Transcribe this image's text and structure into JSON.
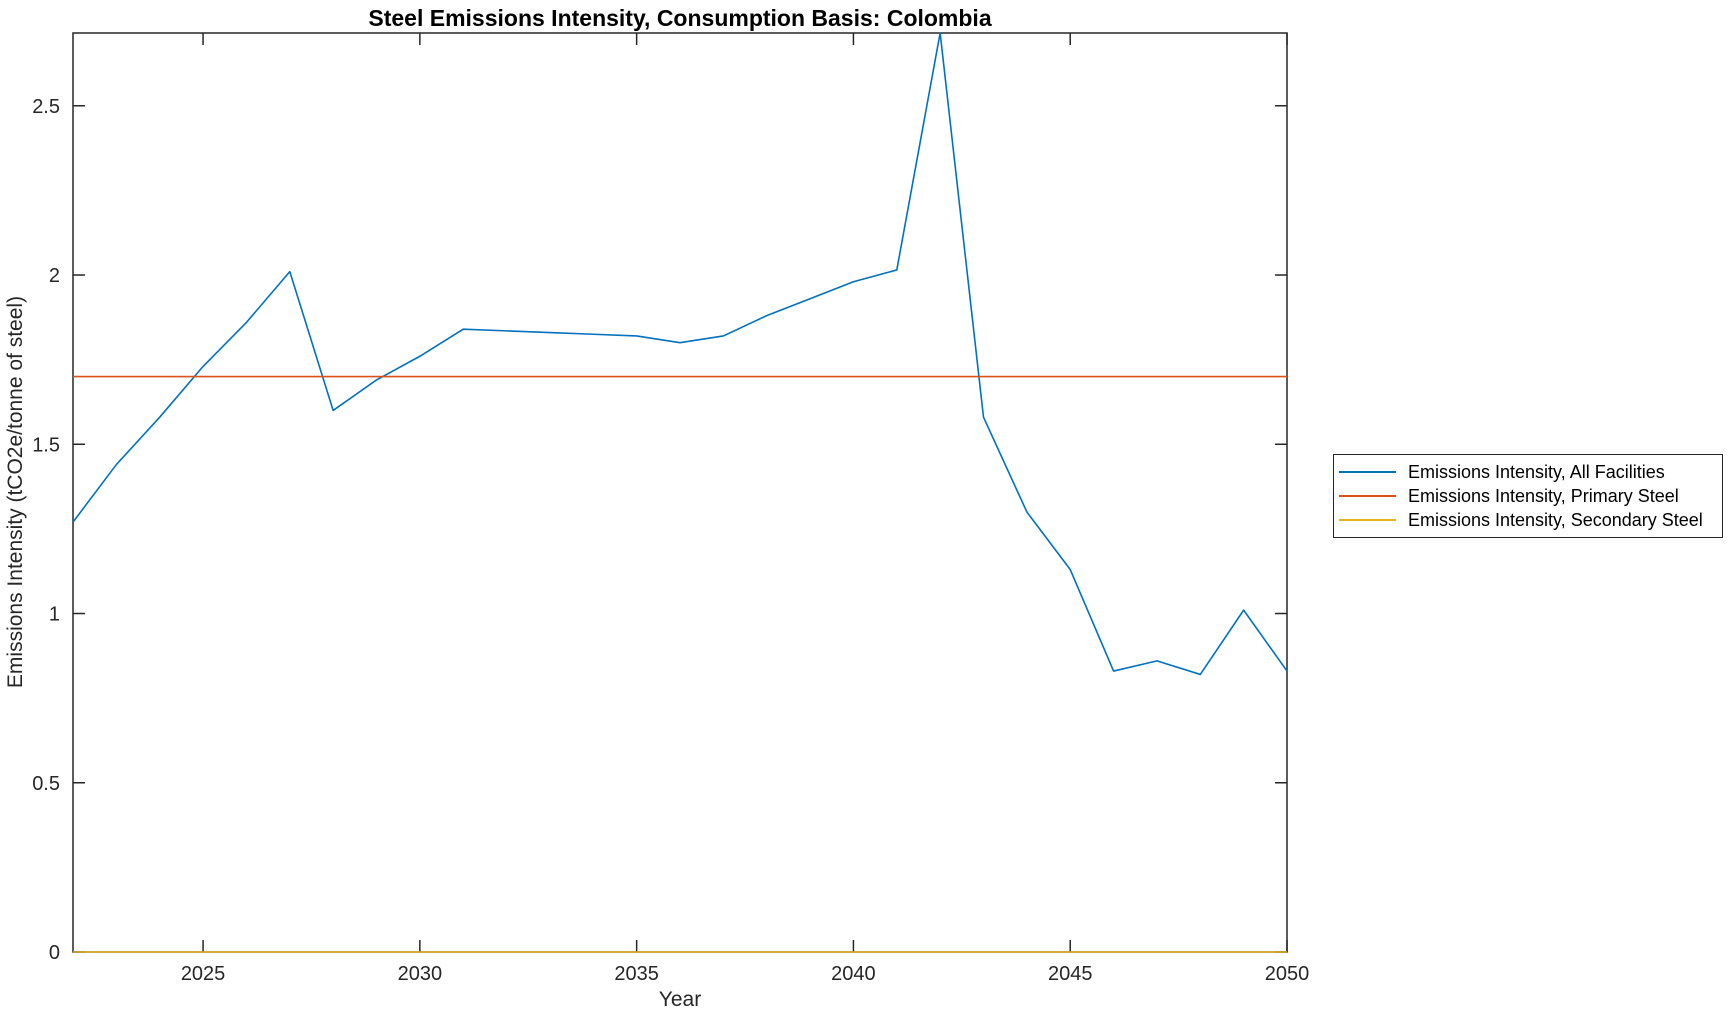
{
  "title": "Steel Emissions Intensity, Consumption Basis: Colombia",
  "axis_color": "#262626",
  "background_color": "#ffffff",
  "chart_data": {
    "type": "line",
    "title": "Steel Emissions Intensity, Consumption Basis: Colombia",
    "xlabel": "Year",
    "ylabel": "Emissions Intensity (tCO2e/tonne of steel)",
    "xlim": [
      2022,
      2050
    ],
    "ylim": [
      0,
      2.715
    ],
    "xticks": [
      2025,
      2030,
      2035,
      2040,
      2045,
      2050
    ],
    "xtick_labels": [
      "2025",
      "2030",
      "2035",
      "2040",
      "2045",
      "2050"
    ],
    "yticks": [
      0,
      0.5,
      1,
      1.5,
      2,
      2.5
    ],
    "ytick_labels": [
      "0",
      "0.5",
      "1",
      "1.5",
      "2",
      "2.5"
    ],
    "grid": false,
    "legend_position": "right-outside",
    "x": [
      2022,
      2023,
      2024,
      2025,
      2026,
      2027,
      2028,
      2029,
      2030,
      2031,
      2032,
      2033,
      2034,
      2035,
      2036,
      2037,
      2038,
      2039,
      2040,
      2041,
      2042,
      2043,
      2044,
      2045,
      2046,
      2047,
      2048,
      2049,
      2050
    ],
    "series": [
      {
        "name": "Emissions Intensity, All Facilities",
        "color": "#0072BD",
        "values": [
          1.27,
          1.44,
          1.58,
          1.73,
          1.86,
          2.01,
          1.6,
          1.69,
          1.76,
          1.84,
          1.835,
          1.83,
          1.825,
          1.82,
          1.8,
          1.82,
          1.88,
          1.93,
          1.98,
          2.015,
          2.715,
          1.58,
          1.3,
          1.13,
          0.83,
          0.86,
          0.82,
          1.01,
          0.83
        ]
      },
      {
        "name": "Emissions Intensity, Primary Steel",
        "color": "#D95319",
        "values": [
          1.7,
          1.7,
          1.7,
          1.7,
          1.7,
          1.7,
          1.7,
          1.7,
          1.7,
          1.7,
          1.7,
          1.7,
          1.7,
          1.7,
          1.7,
          1.7,
          1.7,
          1.7,
          1.7,
          1.7,
          1.7,
          1.7,
          1.7,
          1.7,
          1.7,
          1.7,
          1.7,
          1.7,
          1.7
        ]
      },
      {
        "name": "Emissions Intensity, Secondary Steel",
        "color": "#EDB120",
        "values": [
          0,
          0,
          0,
          0,
          0,
          0,
          0,
          0,
          0,
          0,
          0,
          0,
          0,
          0,
          0,
          0,
          0,
          0,
          0,
          0,
          0,
          0,
          0,
          0,
          0,
          0,
          0,
          0,
          0
        ]
      }
    ]
  }
}
